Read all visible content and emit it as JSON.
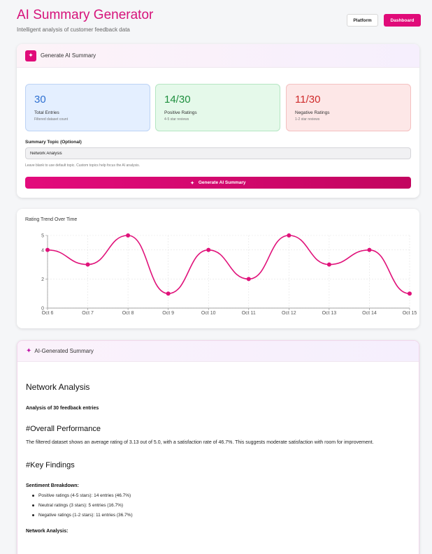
{
  "header": {
    "title": "AI Summary Generator",
    "subtitle": "Intelligent analysis of customer feedback data",
    "platform_label": "Platform",
    "dashboard_label": "Dashboard"
  },
  "generator": {
    "heading": "Generate AI Summary",
    "stats": [
      {
        "value": "30",
        "label": "Total Entries",
        "sub": "Filtered dataset count"
      },
      {
        "value": "14/30",
        "label": "Positive Ratings",
        "sub": "4-5 star reviews"
      },
      {
        "value": "11/30",
        "label": "Negative Ratings",
        "sub": "1-2 star reviews"
      }
    ],
    "topic_label": "Summary Topic (Optional)",
    "topic_value": "Network Analysis",
    "topic_help": "Leave blank to use default topic. Custom topics help focus the AI analysis.",
    "generate_label": "Generate AI Summary"
  },
  "chart_data": {
    "type": "line",
    "title": "Rating Trend Over Time",
    "categories": [
      "Oct 6",
      "Oct 7",
      "Oct 8",
      "Oct 9",
      "Oct 10",
      "Oct 11",
      "Oct 12",
      "Oct 13",
      "Oct 14",
      "Oct 15"
    ],
    "values": [
      4,
      3,
      5,
      1,
      4,
      2,
      5,
      3,
      4,
      1
    ],
    "y_ticks": [
      "0",
      "2",
      "4",
      "5"
    ],
    "ylim": [
      0,
      5
    ],
    "grid": true,
    "color": "#e0127a"
  },
  "summary": {
    "heading": "AI-Generated Summary",
    "title": "Network Analysis",
    "subtitle": "Analysis of 30 feedback entries",
    "section1": "#Overall Performance",
    "para1": "The filtered dataset shows an average rating of 3.13 out of 5.0, with a satisfaction rate of 46.7%. This suggests moderate satisfaction with room for improvement.",
    "section2": "#Key Findings",
    "breakdown_label": "Sentiment Breakdown:",
    "breakdown": [
      "Positive ratings (4-5 stars): 14 entries (46.7%)",
      "Neutral ratings (3 stars): 5 entries (16.7%)",
      "Negative ratings (1-2 stars): 11 entries (36.7%)"
    ],
    "next_label": "Network Analysis:"
  }
}
